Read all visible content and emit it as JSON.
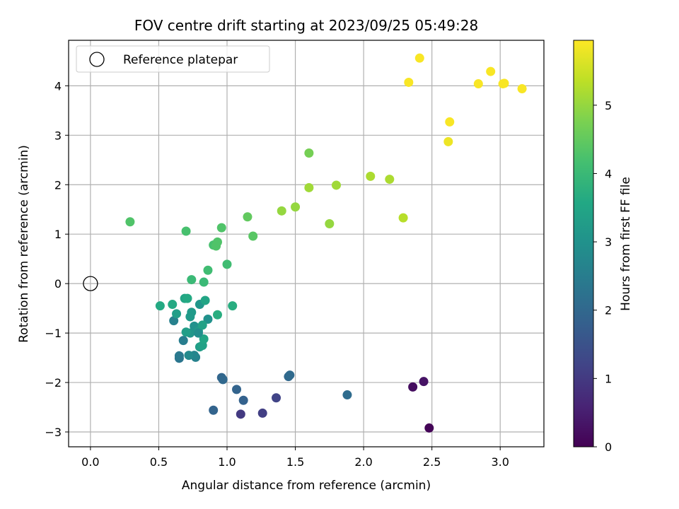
{
  "chart_data": {
    "type": "scatter",
    "title": "FOV centre drift starting at 2023/09/25 05:49:28",
    "xlabel": "Angular distance from reference (arcmin)",
    "ylabel": "Rotation from reference (arcmin)",
    "xlim": [
      -0.16,
      3.32
    ],
    "ylim": [
      -3.3,
      4.92
    ],
    "xticks": [
      0.0,
      0.5,
      1.0,
      1.5,
      2.0,
      2.5,
      3.0
    ],
    "xtick_labels": [
      "0.0",
      "0.5",
      "1.0",
      "1.5",
      "2.0",
      "2.5",
      "3.0"
    ],
    "yticks": [
      -3,
      -2,
      -1,
      0,
      1,
      2,
      3,
      4
    ],
    "ytick_labels": [
      "−3",
      "−2",
      "−1",
      "0",
      "1",
      "2",
      "3",
      "4"
    ],
    "grid": true,
    "colormap": "viridis",
    "colorbar": {
      "label": "Hours from first FF file",
      "range": [
        0,
        5.95
      ],
      "ticks": [
        0,
        1,
        2,
        3,
        4,
        5
      ],
      "tick_labels": [
        "0",
        "1",
        "2",
        "3",
        "4",
        "5"
      ]
    },
    "legend": {
      "placement": "top-left",
      "label": "Reference platepar",
      "marker": "open-circle"
    },
    "reference_point": {
      "x": 0.0,
      "y": 0.0
    },
    "x_values": [
      2.48,
      2.36,
      2.44,
      1.1,
      1.26,
      1.36,
      0.9,
      1.12,
      1.07,
      0.96,
      0.97,
      1.45,
      1.46,
      1.88,
      0.65,
      0.65,
      0.77,
      0.76,
      0.72,
      0.68,
      0.61,
      0.73,
      0.76,
      0.79,
      0.8,
      0.82,
      0.83,
      0.79,
      0.86,
      0.74,
      0.82,
      0.8,
      0.7,
      0.63,
      0.73,
      0.51,
      0.6,
      0.69,
      0.71,
      0.84,
      0.93,
      1.04,
      0.74,
      0.83,
      0.86,
      1.0,
      0.9,
      0.92,
      0.93,
      0.29,
      0.7,
      0.96,
      1.15,
      1.19,
      1.6,
      1.4,
      1.5,
      1.6,
      1.75,
      1.8,
      2.05,
      2.19,
      2.29,
      2.33,
      2.41,
      2.62,
      2.63,
      2.84,
      2.93,
      3.02,
      3.03,
      3.16
    ],
    "y_values": [
      -2.92,
      -2.09,
      -1.98,
      -2.64,
      -2.62,
      -2.31,
      -2.56,
      -2.36,
      -2.14,
      -1.9,
      -1.94,
      -1.88,
      -1.85,
      -2.25,
      -1.51,
      -1.46,
      -1.49,
      -1.45,
      -1.45,
      -1.15,
      -0.75,
      -1.0,
      -0.86,
      -0.96,
      -1.28,
      -1.25,
      -1.12,
      -1.0,
      -0.72,
      -0.58,
      -0.84,
      -0.42,
      -0.98,
      -0.61,
      -0.67,
      -0.45,
      -0.42,
      -0.3,
      -0.3,
      -0.34,
      -0.63,
      -0.45,
      0.08,
      0.03,
      0.27,
      0.39,
      0.78,
      0.76,
      0.84,
      1.25,
      1.06,
      1.13,
      1.35,
      0.96,
      2.64,
      1.47,
      1.55,
      1.94,
      1.21,
      1.99,
      2.17,
      2.11,
      1.33,
      4.07,
      4.56,
      2.87,
      3.27,
      4.04,
      4.29,
      4.04,
      4.05,
      3.94
    ],
    "hours": [
      0.05,
      0.2,
      0.3,
      1.0,
      1.1,
      1.2,
      1.9,
      1.85,
      1.9,
      1.95,
      2.0,
      2.0,
      2.05,
      2.1,
      2.3,
      2.4,
      2.6,
      2.7,
      2.8,
      2.5,
      2.6,
      3.1,
      3.0,
      3.2,
      3.3,
      3.4,
      3.5,
      2.9,
      3.0,
      3.2,
      3.4,
      3.1,
      3.3,
      3.3,
      3.2,
      3.6,
      3.6,
      3.5,
      3.6,
      3.5,
      3.7,
      3.7,
      4.0,
      4.0,
      4.1,
      4.1,
      4.2,
      4.3,
      4.3,
      4.3,
      4.2,
      4.3,
      4.5,
      4.4,
      4.7,
      5.0,
      5.0,
      5.1,
      5.0,
      5.1,
      5.2,
      5.2,
      5.3,
      5.9,
      5.9,
      5.8,
      5.9,
      5.9,
      5.9,
      5.9,
      5.9,
      5.9
    ]
  }
}
